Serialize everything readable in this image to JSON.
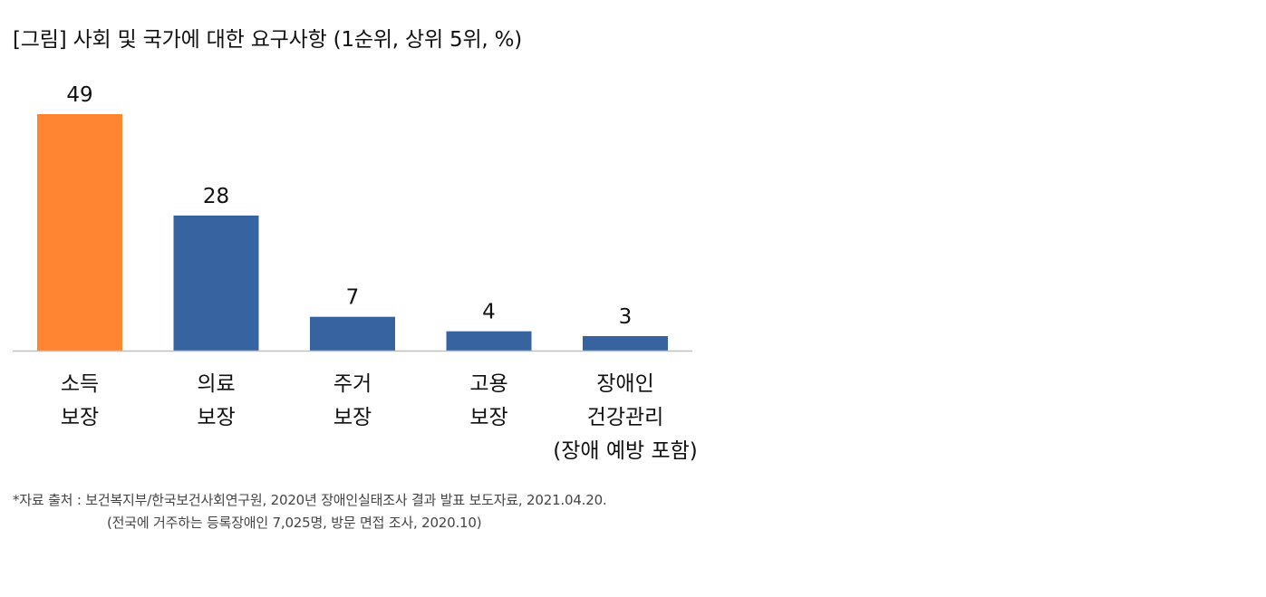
{
  "title": "[그림] 사회 및 국가에 대한 요구사항 (1순위, 상위 5위, %)",
  "source": {
    "line1": "*자료 출처 : 보건복지부/한국보건사회연구원, 2020년 장애인실태조사 결과 발표 보도자료, 2021.04.20.",
    "line2": "(전국에 거주하는 등록장애인 7,025명, 방문 면접 조사, 2020.10)"
  },
  "colors": {
    "highlight": "#FF8533",
    "bar": "#3764A0",
    "axis": "#BFBFBF",
    "text": "#111111"
  },
  "chart_data": {
    "type": "bar",
    "title": "[그림] 사회 및 국가에 대한 요구사항 (1순위, 상위 5위, %)",
    "categories": [
      [
        "소득",
        "보장"
      ],
      [
        "의료",
        "보장"
      ],
      [
        "주거",
        "보장"
      ],
      [
        "고용",
        "보장"
      ],
      [
        "장애인",
        "건강관리",
        "(장애 예방 포함)"
      ]
    ],
    "values": [
      49,
      28,
      7,
      4,
      3
    ],
    "highlight_index": 0,
    "ylim": [
      0,
      49
    ],
    "grid": false,
    "legend": "none",
    "data_labels": true
  }
}
